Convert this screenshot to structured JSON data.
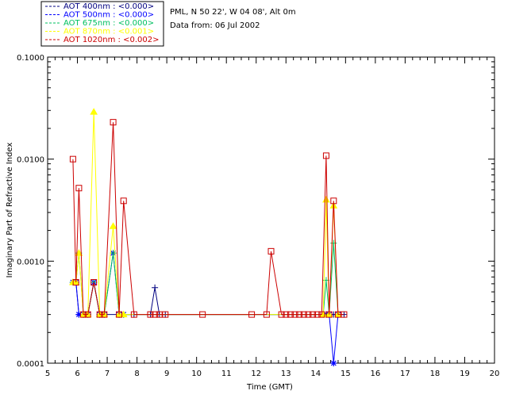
{
  "header": {
    "station": "PML, N 50 22', W 04 08', Alt 0m",
    "data_from": "Data from: 06 Jul 2002"
  },
  "legend": [
    {
      "label": "AOT  400nm : <0.000>",
      "color": "#000080"
    },
    {
      "label": "AOT  500nm : <0.000>",
      "color": "#0000ff"
    },
    {
      "label": "AOT  675nm : <0.000>",
      "color": "#00c060"
    },
    {
      "label": "AOT  870nm : <0.001>",
      "color": "#ffff00"
    },
    {
      "label": "AOT 1020nm : <0.002>",
      "color": "#cc0000"
    }
  ],
  "chart_data": {
    "type": "line",
    "xlabel": "Time (GMT)",
    "ylabel": "Imaginary Part of Refractive Index",
    "xlim": [
      5,
      20
    ],
    "ylim": [
      0.0001,
      0.1
    ],
    "yscale": "log",
    "xticks": [
      "5",
      "6",
      "7",
      "8",
      "9",
      "10",
      "11",
      "12",
      "13",
      "14",
      "15",
      "16",
      "17",
      "18",
      "19",
      "20"
    ],
    "yticks": [
      "0.0001",
      "0.0010",
      "0.0100",
      "0.1000"
    ],
    "series": [
      {
        "name": "AOT  400nm : <0.000>",
        "color": "#000080",
        "marker": "plus",
        "x": [
          5.85,
          5.95,
          6.05,
          6.2,
          6.35,
          6.55,
          6.75,
          6.9,
          7.4,
          7.55,
          7.9,
          8.45,
          8.6,
          8.75,
          8.95,
          14.35,
          14.45,
          14.6,
          14.75,
          14.95
        ],
        "y": [
          0.00062,
          0.00062,
          0.0003,
          0.0003,
          0.0003,
          0.00062,
          0.0003,
          0.0003,
          0.0003,
          0.0003,
          0.0003,
          0.0003,
          0.00055,
          0.0003,
          0.0003,
          0.0003,
          0.0003,
          0.0003,
          0.0003,
          0.0003
        ]
      },
      {
        "name": "AOT  500nm : <0.000>",
        "color": "#0000ff",
        "marker": "star",
        "x": [
          5.85,
          5.95,
          6.05,
          6.2,
          6.35,
          6.55,
          6.75,
          6.9,
          7.2,
          7.4,
          7.55,
          14.35,
          14.45,
          14.6,
          14.75
        ],
        "y": [
          0.00062,
          0.00062,
          0.0003,
          0.0003,
          0.0003,
          0.00062,
          0.0003,
          0.0003,
          0.0012,
          0.0003,
          0.0003,
          0.0003,
          0.0003,
          0.0001,
          0.0003
        ]
      },
      {
        "name": "AOT  675nm : <0.000>",
        "color": "#00c060",
        "marker": "plus",
        "x": [
          5.85,
          5.95,
          6.05,
          6.2,
          6.35,
          6.55,
          6.75,
          6.9,
          7.2,
          7.4,
          7.55,
          14.25,
          14.35,
          14.45,
          14.6,
          14.75
        ],
        "y": [
          0.00062,
          0.00062,
          0.0012,
          0.0003,
          0.0003,
          0.00062,
          0.0003,
          0.0003,
          0.0012,
          0.0003,
          0.0003,
          0.0003,
          0.00065,
          0.0003,
          0.0015,
          0.0003
        ]
      },
      {
        "name": "AOT  870nm : <0.001>",
        "color": "#ffff00",
        "marker": "tri",
        "x": [
          5.85,
          5.95,
          6.05,
          6.2,
          6.35,
          6.55,
          6.75,
          6.9,
          7.2,
          7.4,
          7.55,
          14.25,
          14.35,
          14.45,
          14.6,
          14.75
        ],
        "y": [
          0.00062,
          0.00062,
          0.0012,
          0.0003,
          0.0003,
          0.029,
          0.0003,
          0.0003,
          0.0022,
          0.0003,
          0.0003,
          0.0003,
          0.004,
          0.0003,
          0.0035,
          0.0003
        ]
      },
      {
        "name": "AOT 1020nm : <0.002>",
        "color": "#cc0000",
        "marker": "square",
        "x": [
          5.85,
          5.95,
          6.05,
          6.2,
          6.35,
          6.55,
          6.75,
          6.9,
          7.2,
          7.4,
          7.55,
          7.9,
          8.45,
          8.6,
          8.75,
          8.95,
          10.2,
          11.85,
          12.35,
          12.5,
          12.85,
          13.0,
          13.15,
          13.3,
          13.45,
          13.6,
          13.75,
          13.9,
          14.05,
          14.2,
          14.35,
          14.45,
          14.6,
          14.75,
          14.95
        ],
        "y": [
          0.01,
          0.00062,
          0.0052,
          0.0003,
          0.0003,
          0.00062,
          0.0003,
          0.0003,
          0.023,
          0.0003,
          0.0039,
          0.0003,
          0.0003,
          0.0003,
          0.0003,
          0.0003,
          0.0003,
          0.0003,
          0.0003,
          0.00125,
          0.0003,
          0.0003,
          0.0003,
          0.0003,
          0.0003,
          0.0003,
          0.0003,
          0.0003,
          0.0003,
          0.0003,
          0.0108,
          0.0003,
          0.0039,
          0.0003,
          0.0003
        ]
      }
    ]
  }
}
